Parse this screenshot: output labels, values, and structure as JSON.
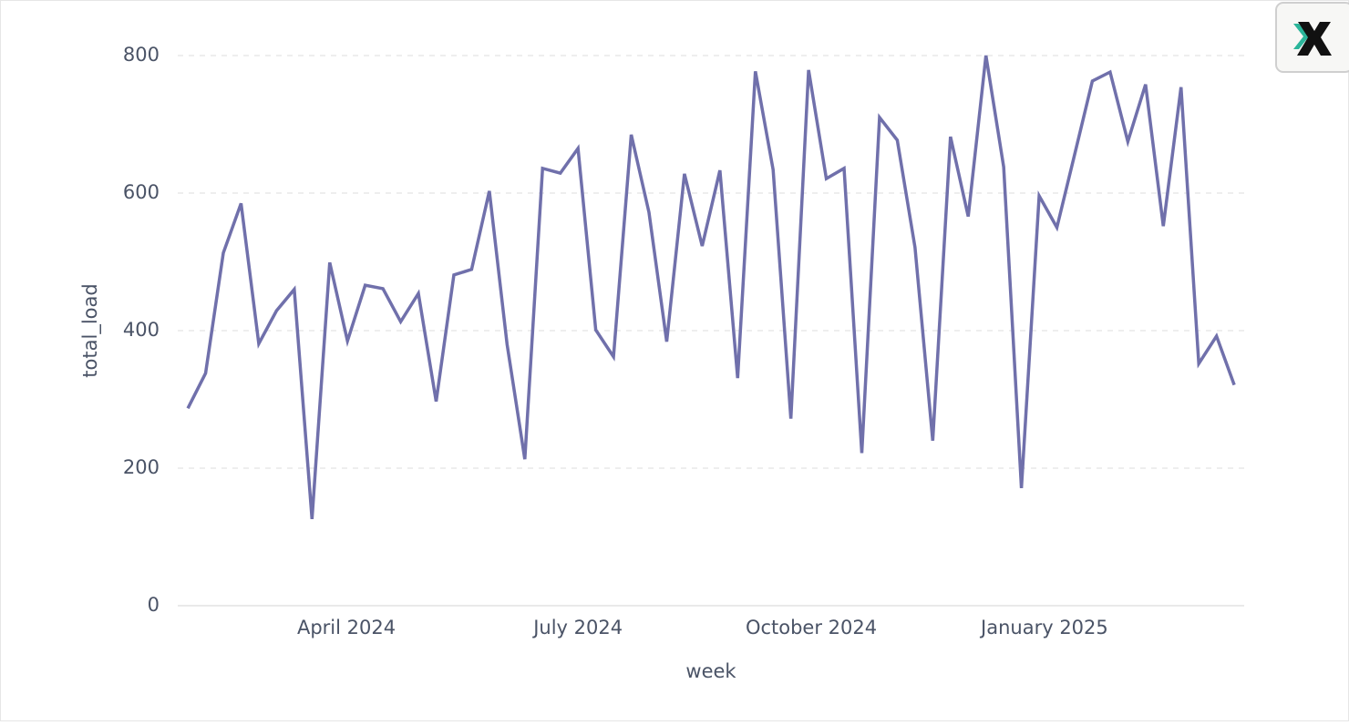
{
  "chart_data": {
    "type": "line",
    "x_label": "week",
    "y_label": "total_load",
    "categories": [
      null,
      null,
      null,
      null,
      null,
      null,
      null,
      null,
      null,
      null,
      null,
      null,
      null,
      null,
      null,
      null,
      null,
      null,
      null,
      null,
      null,
      null,
      null,
      null,
      null,
      null,
      null,
      null,
      null,
      null,
      null,
      null,
      null,
      null,
      null,
      null,
      null,
      null,
      null,
      null,
      null,
      null,
      null,
      null,
      null,
      null,
      null,
      null,
      null,
      null,
      null,
      null,
      null,
      null,
      null,
      null,
      null,
      null,
      null,
      null
    ],
    "values": [
      287,
      338,
      513,
      585,
      381,
      429,
      460,
      126,
      499,
      385,
      466,
      461,
      413,
      454,
      297,
      481,
      489,
      603,
      380,
      213,
      636,
      629,
      665,
      401,
      362,
      685,
      572,
      384,
      628,
      523,
      633,
      331,
      777,
      634,
      272,
      779,
      621,
      636,
      222,
      710,
      677,
      521,
      240,
      682,
      566,
      800,
      638,
      171,
      596,
      550,
      656,
      763,
      776,
      675,
      758,
      552,
      754,
      352,
      392,
      321
    ],
    "color": "#7070ab",
    "xlim": [
      -0.57,
      59.56
    ],
    "xticks": [
      {
        "value": 8.94,
        "label": "April 2024"
      },
      {
        "value": 22.0,
        "label": "July 2024"
      },
      {
        "value": 35.15,
        "label": "October 2024"
      },
      {
        "value": 48.3,
        "label": "January 2025"
      }
    ],
    "ylim": [
      0,
      800
    ],
    "yticks": [
      0,
      200,
      400,
      600,
      800
    ],
    "grid": true
  }
}
